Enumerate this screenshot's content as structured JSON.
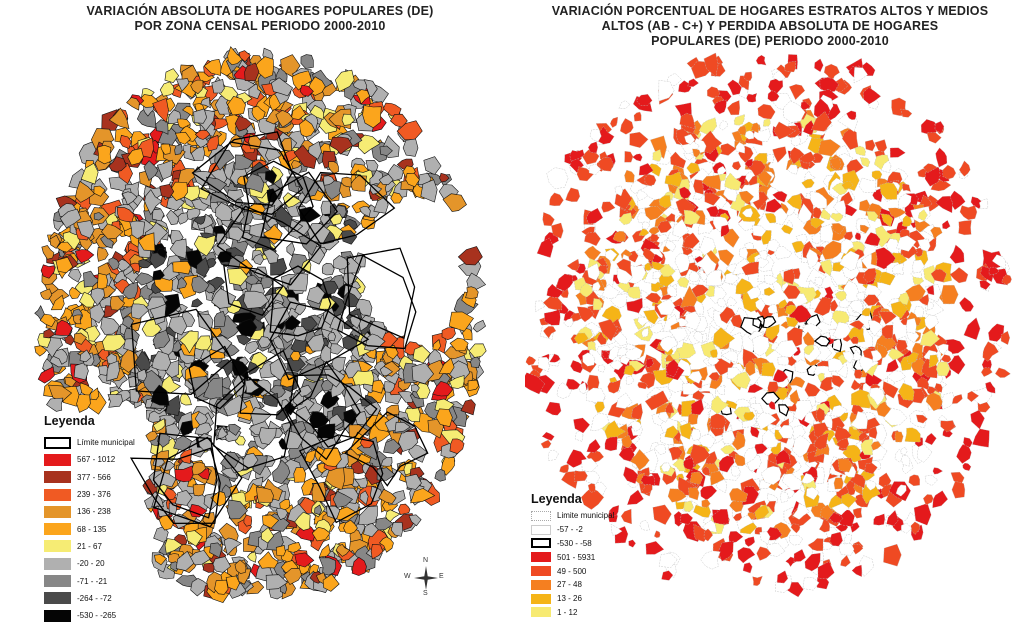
{
  "left_map": {
    "title_line1": "VARIACIÓN ABSOLUTA DE HOGARES POPULARES (DE)",
    "title_line2": "POR ZONA CENSAL PERIODO 2000-2010",
    "legend": {
      "heading": "Leyenda",
      "items": [
        {
          "label": "Límite municipal",
          "color": "#ffffff",
          "border": "#000000"
        },
        {
          "label": "567 - 1012",
          "color": "#e41a1c"
        },
        {
          "label": "377 - 566",
          "color": "#a8321e"
        },
        {
          "label": "239 - 376",
          "color": "#f05a23"
        },
        {
          "label": "136 - 238",
          "color": "#e4952a"
        },
        {
          "label": "68 - 135",
          "color": "#fba51c"
        },
        {
          "label": "21 - 67",
          "color": "#f6ec74"
        },
        {
          "label": "-20 - 20",
          "color": "#b0b0b0"
        },
        {
          "label": "-71 - -21",
          "color": "#878787"
        },
        {
          "label": "-264 - -72",
          "color": "#4a4a4a"
        },
        {
          "label": "-530 - -265",
          "color": "#050505"
        }
      ]
    },
    "compass": {
      "n": "N",
      "s": "S",
      "e": "E",
      "w": "W"
    }
  },
  "right_map": {
    "title_line1": "VARIACIÓN PORCENTUAL DE HOGARES ESTRATOS ALTOS Y MEDIOS",
    "title_line2": "ALTOS (AB - C+) Y PERDIDA ABSOLUTA DE HOGARES",
    "title_line3": "POPULARES (DE)  PERIODO 2000-2010",
    "legend": {
      "heading": "Leyenda",
      "items": [
        {
          "label": "Limite municipal",
          "color": "#ffffff",
          "border": "dotted #aaaaaa"
        },
        {
          "label": "-57 - -2",
          "color": "#ffffff",
          "border": "#cccccc"
        },
        {
          "label": "-530 - -58",
          "color": "#ffffff",
          "border": "#000000"
        },
        {
          "label": "501 - 5931",
          "color": "#e41a1c"
        },
        {
          "label": "49 - 500",
          "color": "#ef4a23"
        },
        {
          "label": "27 - 48",
          "color": "#f57f20"
        },
        {
          "label": "13 - 26",
          "color": "#f5b417"
        },
        {
          "label": "1 - 12",
          "color": "#f7ea72"
        }
      ]
    }
  }
}
